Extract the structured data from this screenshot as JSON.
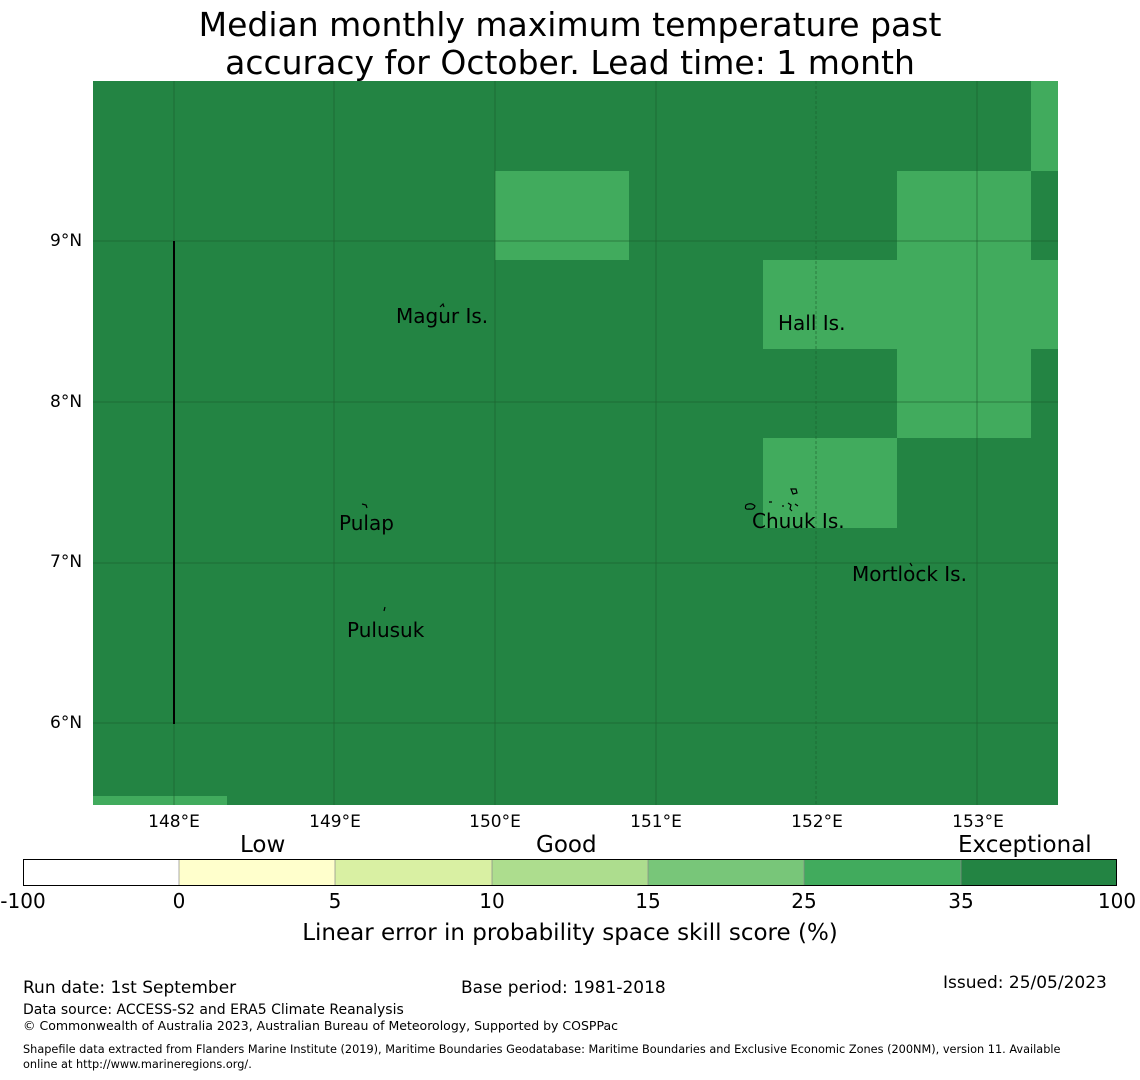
{
  "title": {
    "line1": "Median monthly maximum temperature past",
    "line2": "accuracy for October. Lead time: 1 month"
  },
  "map": {
    "lat_ticks": [
      "9°N",
      "8°N",
      "7°N",
      "6°N"
    ],
    "lon_ticks": [
      "148°E",
      "149°E",
      "150°E",
      "151°E",
      "152°E",
      "153°E"
    ],
    "place_labels": [
      "Magur Is.",
      "Hall Is.",
      "Pulap",
      "Chuuk Is.",
      "Mortlock Is.",
      "Pulusuk"
    ],
    "colors": {
      "exceptional": "#238443",
      "high_good": "#41ab5d"
    }
  },
  "legend": {
    "categories": [
      "Low",
      "Good",
      "Exceptional"
    ],
    "ticks": [
      "-100",
      "0",
      "5",
      "10",
      "15",
      "25",
      "35",
      "100"
    ],
    "colors": [
      "#ffffff",
      "#ffffcc",
      "#d9f0a3",
      "#addd8e",
      "#78c679",
      "#41ab5d",
      "#238443"
    ],
    "label": "Linear error in probability space skill score (%)"
  },
  "footer": {
    "run_date": "Run date: 1st September",
    "base_period": "Base period: 1981-2018",
    "issued": "Issued: 25/05/2023",
    "data_source": "Data source: ACCESS-S2 and ERA5 Climate Reanalysis",
    "copyright": "© Commonwealth of Australia 2023, Australian Bureau of Meteorology, Supported by COSPPac",
    "shapefile_line1": "Shapefile data extracted from Flanders Marine Institute (2019), Maritime Boundaries Geodatabase: Maritime Boundaries and Exclusive Economic Zones (200NM), version 11. Available",
    "shapefile_line2": "online at http://www.marineregions.org/."
  }
}
